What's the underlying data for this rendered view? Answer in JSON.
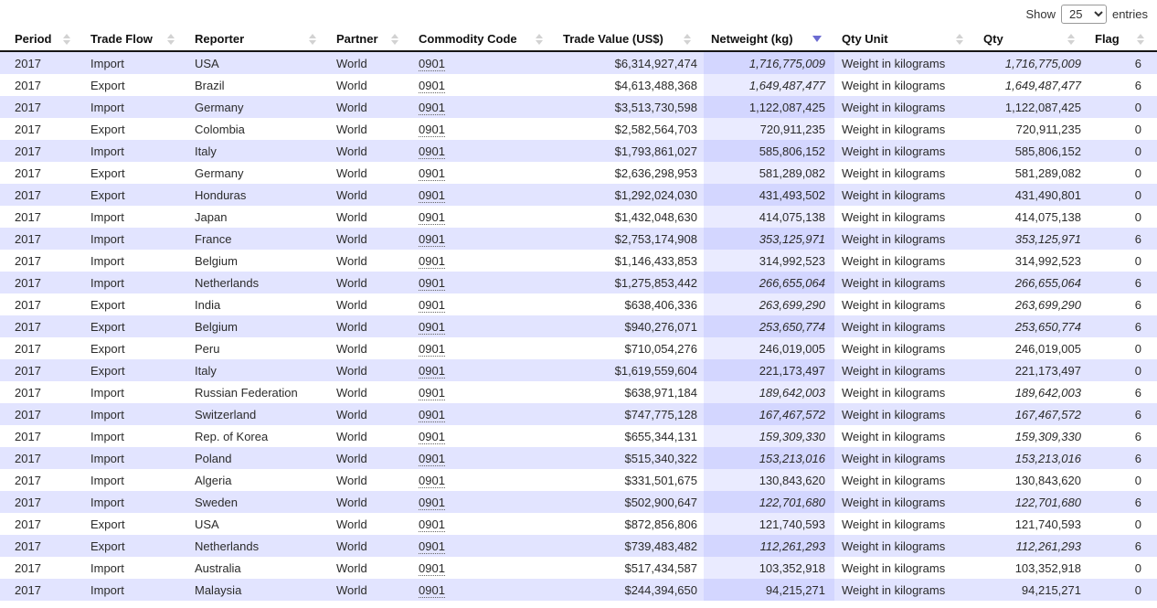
{
  "length_control": {
    "show_label": "Show",
    "selected_value": "25",
    "entries_label": "entries"
  },
  "columns": [
    {
      "key": "period",
      "label": "Period",
      "align": "left",
      "sort": "both"
    },
    {
      "key": "flow",
      "label": "Trade Flow",
      "align": "left",
      "sort": "both"
    },
    {
      "key": "reporter",
      "label": "Reporter",
      "align": "left",
      "sort": "both"
    },
    {
      "key": "partner",
      "label": "Partner",
      "align": "left",
      "sort": "both"
    },
    {
      "key": "code",
      "label": "Commodity Code",
      "align": "left",
      "sort": "both",
      "link": true
    },
    {
      "key": "value",
      "label": "Trade Value (US$)",
      "align": "right",
      "sort": "both"
    },
    {
      "key": "netweight",
      "label": "Netweight (kg)",
      "align": "right",
      "sort": "desc",
      "sorted": true
    },
    {
      "key": "unit",
      "label": "Qty Unit",
      "align": "left",
      "sort": "both"
    },
    {
      "key": "qty",
      "label": "Qty",
      "align": "right",
      "sort": "both"
    },
    {
      "key": "flag",
      "label": "Flag",
      "align": "right",
      "sort": "both"
    }
  ],
  "rows": [
    {
      "period": "2017",
      "flow": "Import",
      "reporter": "USA",
      "partner": "World",
      "code": "0901",
      "value": "$6,314,927,474",
      "netweight": "1,716,775,009",
      "unit": "Weight in kilograms",
      "qty": "1,716,775,009",
      "flag": "6"
    },
    {
      "period": "2017",
      "flow": "Export",
      "reporter": "Brazil",
      "partner": "World",
      "code": "0901",
      "value": "$4,613,488,368",
      "netweight": "1,649,487,477",
      "unit": "Weight in kilograms",
      "qty": "1,649,487,477",
      "flag": "6"
    },
    {
      "period": "2017",
      "flow": "Import",
      "reporter": "Germany",
      "partner": "World",
      "code": "0901",
      "value": "$3,513,730,598",
      "netweight": "1,122,087,425",
      "unit": "Weight in kilograms",
      "qty": "1,122,087,425",
      "flag": "0"
    },
    {
      "period": "2017",
      "flow": "Export",
      "reporter": "Colombia",
      "partner": "World",
      "code": "0901",
      "value": "$2,582,564,703",
      "netweight": "720,911,235",
      "unit": "Weight in kilograms",
      "qty": "720,911,235",
      "flag": "0"
    },
    {
      "period": "2017",
      "flow": "Import",
      "reporter": "Italy",
      "partner": "World",
      "code": "0901",
      "value": "$1,793,861,027",
      "netweight": "585,806,152",
      "unit": "Weight in kilograms",
      "qty": "585,806,152",
      "flag": "0"
    },
    {
      "period": "2017",
      "flow": "Export",
      "reporter": "Germany",
      "partner": "World",
      "code": "0901",
      "value": "$2,636,298,953",
      "netweight": "581,289,082",
      "unit": "Weight in kilograms",
      "qty": "581,289,082",
      "flag": "0"
    },
    {
      "period": "2017",
      "flow": "Export",
      "reporter": "Honduras",
      "partner": "World",
      "code": "0901",
      "value": "$1,292,024,030",
      "netweight": "431,493,502",
      "unit": "Weight in kilograms",
      "qty": "431,490,801",
      "flag": "0"
    },
    {
      "period": "2017",
      "flow": "Import",
      "reporter": "Japan",
      "partner": "World",
      "code": "0901",
      "value": "$1,432,048,630",
      "netweight": "414,075,138",
      "unit": "Weight in kilograms",
      "qty": "414,075,138",
      "flag": "0"
    },
    {
      "period": "2017",
      "flow": "Import",
      "reporter": "France",
      "partner": "World",
      "code": "0901",
      "value": "$2,753,174,908",
      "netweight": "353,125,971",
      "unit": "Weight in kilograms",
      "qty": "353,125,971",
      "flag": "6"
    },
    {
      "period": "2017",
      "flow": "Import",
      "reporter": "Belgium",
      "partner": "World",
      "code": "0901",
      "value": "$1,146,433,853",
      "netweight": "314,992,523",
      "unit": "Weight in kilograms",
      "qty": "314,992,523",
      "flag": "0"
    },
    {
      "period": "2017",
      "flow": "Import",
      "reporter": "Netherlands",
      "partner": "World",
      "code": "0901",
      "value": "$1,275,853,442",
      "netweight": "266,655,064",
      "unit": "Weight in kilograms",
      "qty": "266,655,064",
      "flag": "6"
    },
    {
      "period": "2017",
      "flow": "Export",
      "reporter": "India",
      "partner": "World",
      "code": "0901",
      "value": "$638,406,336",
      "netweight": "263,699,290",
      "unit": "Weight in kilograms",
      "qty": "263,699,290",
      "flag": "6"
    },
    {
      "period": "2017",
      "flow": "Export",
      "reporter": "Belgium",
      "partner": "World",
      "code": "0901",
      "value": "$940,276,071",
      "netweight": "253,650,774",
      "unit": "Weight in kilograms",
      "qty": "253,650,774",
      "flag": "6"
    },
    {
      "period": "2017",
      "flow": "Export",
      "reporter": "Peru",
      "partner": "World",
      "code": "0901",
      "value": "$710,054,276",
      "netweight": "246,019,005",
      "unit": "Weight in kilograms",
      "qty": "246,019,005",
      "flag": "0"
    },
    {
      "period": "2017",
      "flow": "Export",
      "reporter": "Italy",
      "partner": "World",
      "code": "0901",
      "value": "$1,619,559,604",
      "netweight": "221,173,497",
      "unit": "Weight in kilograms",
      "qty": "221,173,497",
      "flag": "0"
    },
    {
      "period": "2017",
      "flow": "Import",
      "reporter": "Russian Federation",
      "partner": "World",
      "code": "0901",
      "value": "$638,971,184",
      "netweight": "189,642,003",
      "unit": "Weight in kilograms",
      "qty": "189,642,003",
      "flag": "6"
    },
    {
      "period": "2017",
      "flow": "Import",
      "reporter": "Switzerland",
      "partner": "World",
      "code": "0901",
      "value": "$747,775,128",
      "netweight": "167,467,572",
      "unit": "Weight in kilograms",
      "qty": "167,467,572",
      "flag": "6"
    },
    {
      "period": "2017",
      "flow": "Import",
      "reporter": "Rep. of Korea",
      "partner": "World",
      "code": "0901",
      "value": "$655,344,131",
      "netweight": "159,309,330",
      "unit": "Weight in kilograms",
      "qty": "159,309,330",
      "flag": "6"
    },
    {
      "period": "2017",
      "flow": "Import",
      "reporter": "Poland",
      "partner": "World",
      "code": "0901",
      "value": "$515,340,322",
      "netweight": "153,213,016",
      "unit": "Weight in kilograms",
      "qty": "153,213,016",
      "flag": "6"
    },
    {
      "period": "2017",
      "flow": "Import",
      "reporter": "Algeria",
      "partner": "World",
      "code": "0901",
      "value": "$331,501,675",
      "netweight": "130,843,620",
      "unit": "Weight in kilograms",
      "qty": "130,843,620",
      "flag": "0"
    },
    {
      "period": "2017",
      "flow": "Import",
      "reporter": "Sweden",
      "partner": "World",
      "code": "0901",
      "value": "$502,900,647",
      "netweight": "122,701,680",
      "unit": "Weight in kilograms",
      "qty": "122,701,680",
      "flag": "6"
    },
    {
      "period": "2017",
      "flow": "Export",
      "reporter": "USA",
      "partner": "World",
      "code": "0901",
      "value": "$872,856,806",
      "netweight": "121,740,593",
      "unit": "Weight in kilograms",
      "qty": "121,740,593",
      "flag": "0"
    },
    {
      "period": "2017",
      "flow": "Export",
      "reporter": "Netherlands",
      "partner": "World",
      "code": "0901",
      "value": "$739,483,482",
      "netweight": "112,261,293",
      "unit": "Weight in kilograms",
      "qty": "112,261,293",
      "flag": "6"
    },
    {
      "period": "2017",
      "flow": "Import",
      "reporter": "Australia",
      "partner": "World",
      "code": "0901",
      "value": "$517,434,587",
      "netweight": "103,352,918",
      "unit": "Weight in kilograms",
      "qty": "103,352,918",
      "flag": "0"
    },
    {
      "period": "2017",
      "flow": "Import",
      "reporter": "Malaysia",
      "partner": "World",
      "code": "0901",
      "value": "$244,394,650",
      "netweight": "94,215,271",
      "unit": "Weight in kilograms",
      "qty": "94,215,271",
      "flag": "0"
    }
  ],
  "colors": {
    "stripe_row": "#E2E4FF",
    "plain_row": "#FFFFFF",
    "sorted_cell_on_stripe": "#D3D6FF",
    "sorted_cell_on_plain": "#EAEBFF",
    "active_sort_arrow": "#6B6BD1",
    "inactive_sort_arrow": "#D2D2D2",
    "header_border": "#161616"
  },
  "icons": {
    "sort_both": "sort-both-icon",
    "sort_desc": "sort-desc-icon",
    "dropdown_caret": "chevron-down-icon"
  }
}
